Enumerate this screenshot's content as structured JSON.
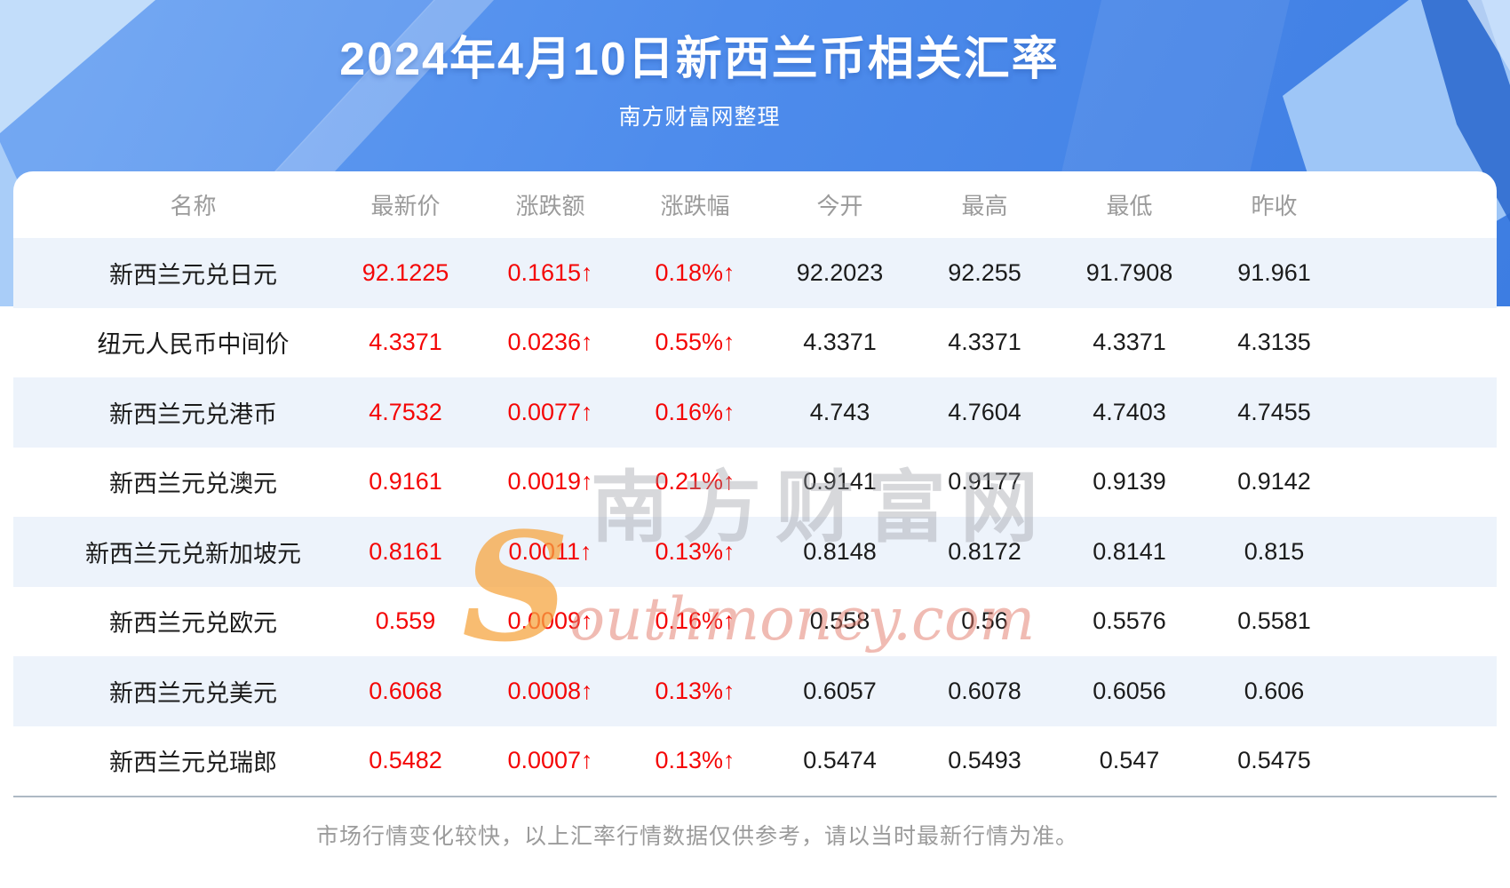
{
  "page": {
    "title": "2024年4月10日新西兰币相关汇率",
    "subtitle": "南方财富网整理",
    "footer_note": "市场行情变化较快，以上汇率行情数据仅供参考，请以当时最新行情为准。"
  },
  "chart_data": {
    "type": "table",
    "title": "2024年4月10日新西兰币相关汇率",
    "source_note": "南方财富网整理",
    "columns": [
      "名称",
      "最新价",
      "涨跌额",
      "涨跌幅",
      "今开",
      "最高",
      "最低",
      "昨收"
    ],
    "rows": [
      [
        "新西兰元兑日元",
        "92.1225",
        "0.1615↑",
        "0.18%↑",
        "92.2023",
        "92.255",
        "91.7908",
        "91.961"
      ],
      [
        "纽元人民币中间价",
        "4.3371",
        "0.0236↑",
        "0.55%↑",
        "4.3371",
        "4.3371",
        "4.3371",
        "4.3135"
      ],
      [
        "新西兰元兑港币",
        "4.7532",
        "0.0077↑",
        "0.16%↑",
        "4.743",
        "4.7604",
        "4.7403",
        "4.7455"
      ],
      [
        "新西兰元兑澳元",
        "0.9161",
        "0.0019↑",
        "0.21%↑",
        "0.9141",
        "0.9177",
        "0.9139",
        "0.9142"
      ],
      [
        "新西兰元兑新加坡元",
        "0.8161",
        "0.0011↑",
        "0.13%↑",
        "0.8148",
        "0.8172",
        "0.8141",
        "0.815"
      ],
      [
        "新西兰元兑欧元",
        "0.559",
        "0.0009↑",
        "0.16%↑",
        "0.558",
        "0.56",
        "0.5576",
        "0.5581"
      ],
      [
        "新西兰元兑美元",
        "0.6068",
        "0.0008↑",
        "0.13%↑",
        "0.6057",
        "0.6078",
        "0.6056",
        "0.606"
      ],
      [
        "新西兰元兑瑞郎",
        "0.5482",
        "0.0007↑",
        "0.13%↑",
        "0.5474",
        "0.5493",
        "0.547",
        "0.5475"
      ]
    ],
    "up_direction_rows": [
      0,
      1,
      2,
      3,
      4,
      5,
      6,
      7
    ]
  },
  "watermark": {
    "text_cn": "南方财富网",
    "text_en": "Southmoney.com"
  },
  "colors": {
    "banner_gradient_start": "#66a0f2",
    "banner_gradient_end": "#3d7de2",
    "row_stripe": "#edf3fb",
    "up_red": "#f40606",
    "cell_text": "#1b1b1b",
    "header_text": "#9b9b9b",
    "divider": "#aeb9c4",
    "watermark_orange": "#f6a642"
  }
}
